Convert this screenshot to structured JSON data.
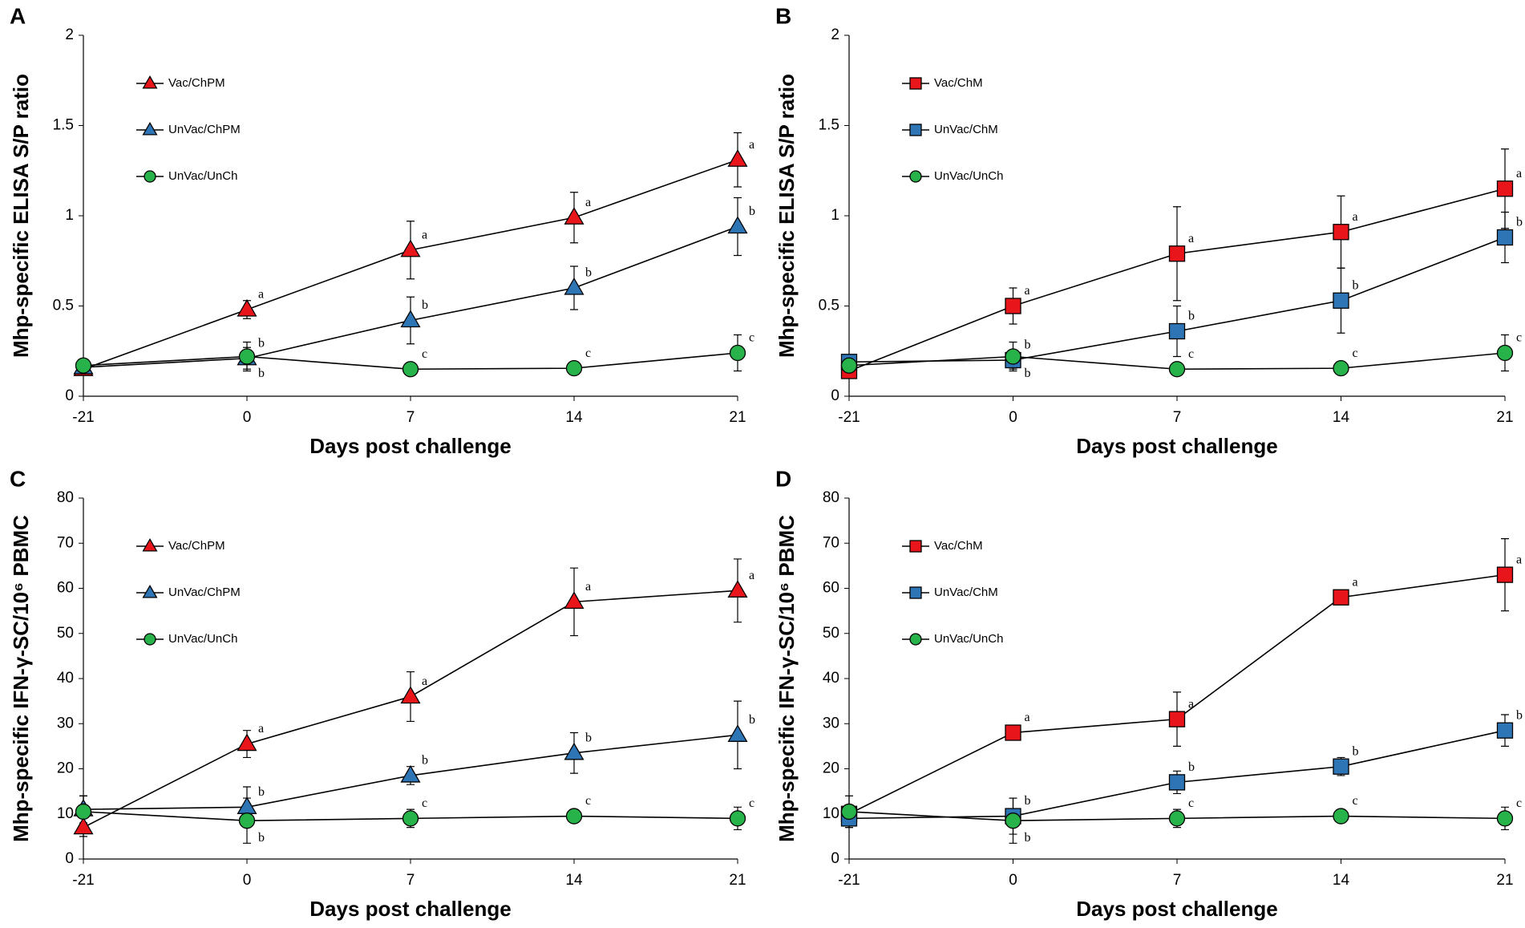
{
  "chart_data": [
    {
      "type": "line",
      "panel": "A",
      "x_label": "Days post challenge",
      "y_label": "Mhp-specific ELISA S/P ratio",
      "categories": [
        "-21",
        "0",
        "7",
        "14",
        "21"
      ],
      "ylim": [
        0,
        2
      ],
      "yticks": [
        0,
        0.5,
        1,
        1.5,
        2
      ],
      "series": [
        {
          "name": "Vac/ChPM",
          "color": "#e8161b",
          "marker": "triangle",
          "values": [
            0.15,
            0.48,
            0.81,
            0.99,
            1.31
          ],
          "errors": [
            0.02,
            0.05,
            0.16,
            0.14,
            0.15
          ],
          "labels": [
            null,
            "a",
            "a",
            "a",
            "a"
          ]
        },
        {
          "name": "UnVac/ChPM",
          "color": "#2e75b6",
          "marker": "triangle",
          "values": [
            0.16,
            0.21,
            0.42,
            0.6,
            0.94
          ],
          "errors": [
            0.02,
            0.06,
            0.13,
            0.12,
            0.16
          ],
          "labels": [
            null,
            "b",
            "b",
            "b",
            "b"
          ]
        },
        {
          "name": "UnVac/UnCh",
          "color": "#27b24a",
          "marker": "circle",
          "values": [
            0.17,
            0.22,
            0.15,
            0.155,
            0.24
          ],
          "errors": [
            0.02,
            0.08,
            0.02,
            0.02,
            0.1
          ],
          "labels": [
            null,
            "b",
            "c",
            "c",
            "c"
          ]
        }
      ]
    },
    {
      "type": "line",
      "panel": "B",
      "x_label": "Days post challenge",
      "y_label": "Mhp-specific ELISA S/P ratio",
      "categories": [
        "-21",
        "0",
        "7",
        "14",
        "21"
      ],
      "ylim": [
        0,
        2
      ],
      "yticks": [
        0,
        0.5,
        1,
        1.5,
        2
      ],
      "series": [
        {
          "name": "Vac/ChM",
          "color": "#e8161b",
          "marker": "square",
          "values": [
            0.14,
            0.5,
            0.79,
            0.91,
            1.15
          ],
          "errors": [
            0.02,
            0.1,
            0.26,
            0.2,
            0.22
          ],
          "labels": [
            null,
            "a",
            "a",
            "a",
            "a"
          ]
        },
        {
          "name": "UnVac/ChM",
          "color": "#2e75b6",
          "marker": "square",
          "values": [
            0.19,
            0.2,
            0.36,
            0.53,
            0.88
          ],
          "errors": [
            0.02,
            0.05,
            0.14,
            0.18,
            0.14
          ],
          "labels": [
            null,
            "b",
            "b",
            "b",
            "b"
          ]
        },
        {
          "name": "UnVac/UnCh",
          "color": "#27b24a",
          "marker": "circle",
          "values": [
            0.17,
            0.22,
            0.15,
            0.155,
            0.24
          ],
          "errors": [
            0.02,
            0.08,
            0.02,
            0.02,
            0.1
          ],
          "labels": [
            null,
            "b",
            "c",
            "c",
            "c"
          ]
        }
      ]
    },
    {
      "type": "line",
      "panel": "C",
      "x_label": "Days post challenge",
      "y_label": "Mhp-specific IFN-γ-SC/10⁶ PBMC",
      "categories": [
        "-21",
        "0",
        "7",
        "14",
        "21"
      ],
      "ylim": [
        0,
        80
      ],
      "yticks": [
        0,
        10,
        20,
        30,
        40,
        50,
        60,
        70,
        80
      ],
      "series": [
        {
          "name": "Vac/ChPM",
          "color": "#e8161b",
          "marker": "triangle",
          "values": [
            7,
            25.5,
            36,
            57,
            59.5
          ],
          "errors": [
            2,
            3,
            5.5,
            7.5,
            7
          ],
          "labels": [
            null,
            "a",
            "a",
            "a",
            "a"
          ]
        },
        {
          "name": "UnVac/ChPM",
          "color": "#2e75b6",
          "marker": "triangle",
          "values": [
            11,
            11.5,
            18.5,
            23.5,
            27.5
          ],
          "errors": [
            3,
            4.5,
            2,
            4.5,
            7.5
          ],
          "labels": [
            null,
            "b",
            "b",
            "b",
            "b"
          ]
        },
        {
          "name": "UnVac/UnCh",
          "color": "#27b24a",
          "marker": "circle",
          "values": [
            10.5,
            8.5,
            9,
            9.5,
            9
          ],
          "errors": [
            3.5,
            5,
            2,
            1,
            2.5
          ],
          "labels": [
            null,
            "b",
            "c",
            "c",
            "c"
          ]
        }
      ]
    },
    {
      "type": "line",
      "panel": "D",
      "x_label": "Days post challenge",
      "y_label": "Mhp-specific IFN-γ-SC/10⁶ PBMC",
      "categories": [
        "-21",
        "0",
        "7",
        "14",
        "21"
      ],
      "ylim": [
        0,
        80
      ],
      "yticks": [
        0,
        10,
        20,
        30,
        40,
        50,
        60,
        70,
        80
      ],
      "series": [
        {
          "name": "Vac/ChM",
          "color": "#e8161b",
          "marker": "square",
          "values": [
            10,
            28,
            31,
            58,
            63
          ],
          "errors": [
            2,
            1,
            6,
            1,
            8
          ],
          "labels": [
            null,
            "a",
            "a",
            "a",
            "a"
          ]
        },
        {
          "name": "UnVac/ChM",
          "color": "#2e75b6",
          "marker": "square",
          "values": [
            9,
            9.5,
            17,
            20.5,
            28.5
          ],
          "errors": [
            2,
            4,
            2.5,
            2,
            3.5
          ],
          "labels": [
            null,
            "b",
            "b",
            "b",
            "b"
          ]
        },
        {
          "name": "UnVac/UnCh",
          "color": "#27b24a",
          "marker": "circle",
          "values": [
            10.5,
            8.5,
            9,
            9.5,
            9
          ],
          "errors": [
            3.5,
            5,
            2,
            1,
            2.5
          ],
          "labels": [
            null,
            "b",
            "c",
            "c",
            "c"
          ]
        }
      ]
    }
  ]
}
